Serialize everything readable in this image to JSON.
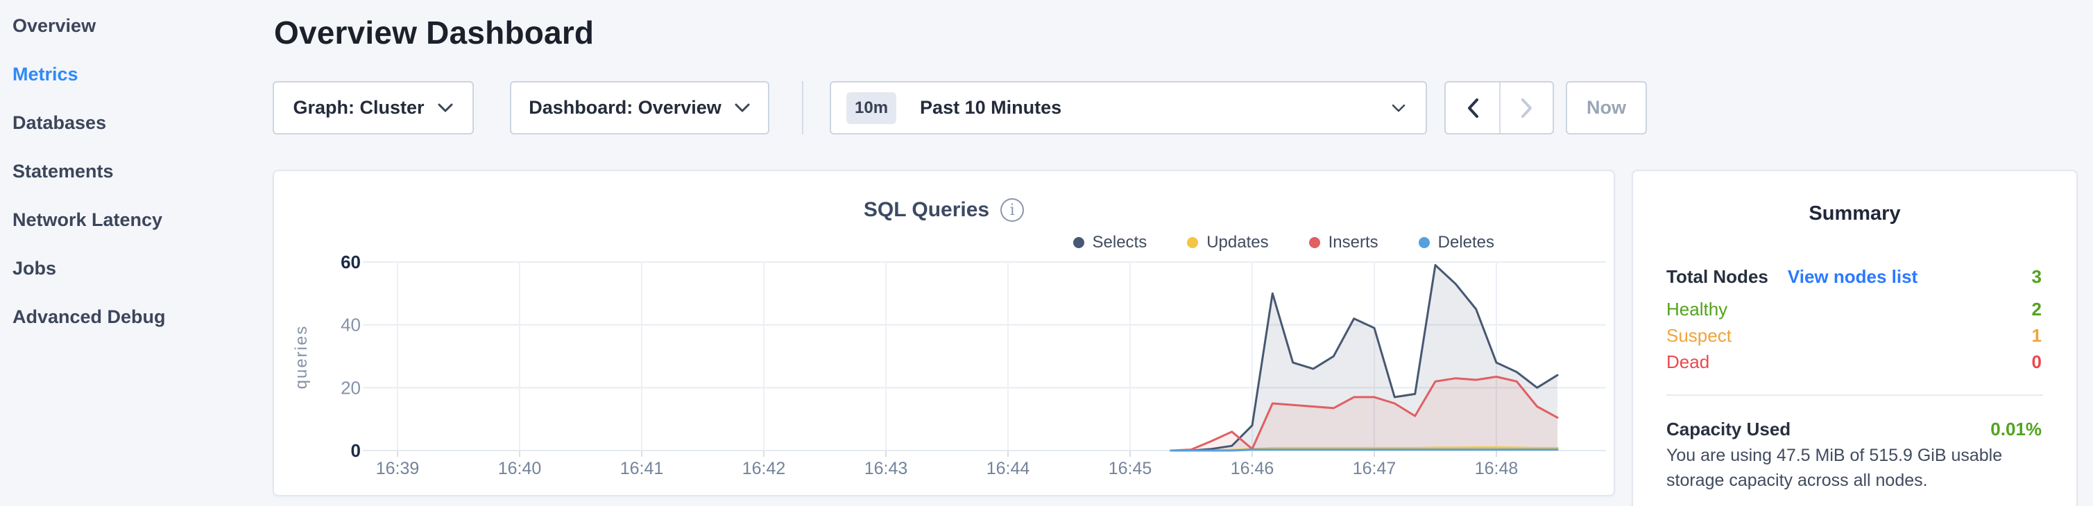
{
  "sidebar": {
    "items": [
      {
        "label": "Overview",
        "active": false
      },
      {
        "label": "Metrics",
        "active": true
      },
      {
        "label": "Databases",
        "active": false
      },
      {
        "label": "Statements",
        "active": false
      },
      {
        "label": "Network Latency",
        "active": false
      },
      {
        "label": "Jobs",
        "active": false
      },
      {
        "label": "Advanced Debug",
        "active": false
      }
    ],
    "active_color": "#2F8AF5"
  },
  "header": {
    "title": "Overview Dashboard"
  },
  "toolbar": {
    "graph_selector_label": "Graph: Cluster",
    "dashboard_selector_label": "Dashboard: Overview",
    "time_range_badge": "10m",
    "time_range_label": "Past 10 Minutes",
    "now_button_label": "Now"
  },
  "chart": {
    "title": "SQL Queries",
    "info_glyph": "i"
  },
  "chart_data": {
    "type": "area",
    "title": "SQL Queries",
    "ylabel": "queries",
    "ylim": [
      0,
      60
    ],
    "yticks": [
      0,
      20,
      40,
      60
    ],
    "grid": true,
    "legend_position": "top-right",
    "x_axis_ticks": [
      "16:39",
      "16:40",
      "16:41",
      "16:42",
      "16:43",
      "16:44",
      "16:45",
      "16:46",
      "16:47",
      "16:48"
    ],
    "x_times": [
      "16:45:20",
      "16:45:30",
      "16:45:40",
      "16:45:50",
      "16:46:00",
      "16:46:10",
      "16:46:20",
      "16:46:30",
      "16:46:40",
      "16:46:50",
      "16:47:00",
      "16:47:10",
      "16:47:20",
      "16:47:30",
      "16:47:40",
      "16:47:50",
      "16:48:00",
      "16:48:10",
      "16:48:20",
      "16:48:30"
    ],
    "series": [
      {
        "name": "Selects",
        "color": "#475872",
        "fill": "rgba(71,88,114,0.12)",
        "values": [
          0,
          0,
          0.5,
          1.5,
          8,
          50,
          28,
          26,
          30,
          42,
          39,
          17,
          18,
          59,
          53,
          45,
          28,
          25,
          20,
          24
        ]
      },
      {
        "name": "Updates",
        "color": "#F4C443",
        "fill": "rgba(244,196,67,0.10)",
        "values": [
          0,
          0,
          0,
          0.2,
          0.5,
          0.8,
          0.8,
          0.8,
          0.8,
          0.8,
          0.8,
          0.8,
          0.8,
          0.9,
          0.9,
          1,
          1,
          0.9,
          0.8,
          0.8
        ]
      },
      {
        "name": "Inserts",
        "color": "#DF5F63",
        "fill": "rgba(223,95,99,0.10)",
        "values": [
          0,
          0.3,
          3,
          6,
          0.5,
          15,
          14.5,
          14,
          13.5,
          17,
          17,
          15,
          11,
          22,
          23,
          22.5,
          23.5,
          22,
          14,
          10.5
        ]
      },
      {
        "name": "Deletes",
        "color": "#56A0DB",
        "fill": "rgba(86,160,219,0.10)",
        "values": [
          0,
          0,
          0,
          0,
          0.3,
          0.3,
          0.3,
          0.3,
          0.3,
          0.3,
          0.3,
          0.3,
          0.3,
          0.3,
          0.3,
          0.3,
          0.3,
          0.3,
          0.3,
          0.3
        ]
      }
    ]
  },
  "summary": {
    "title": "Summary",
    "total_nodes_label": "Total Nodes",
    "view_nodes_link": "View nodes list",
    "total_nodes_value": "3",
    "total_nodes_color": "#52A31D",
    "status_rows": [
      {
        "label": "Healthy",
        "value": "2",
        "color": "#52A31D"
      },
      {
        "label": "Suspect",
        "value": "1",
        "color": "#F2A33B"
      },
      {
        "label": "Dead",
        "value": "0",
        "color": "#E9494E"
      }
    ],
    "capacity_label": "Capacity Used",
    "capacity_value": "0.01%",
    "capacity_color": "#52A31D",
    "capacity_description": "You are using 47.5 MiB of 515.9 GiB usable storage capacity across all nodes."
  }
}
